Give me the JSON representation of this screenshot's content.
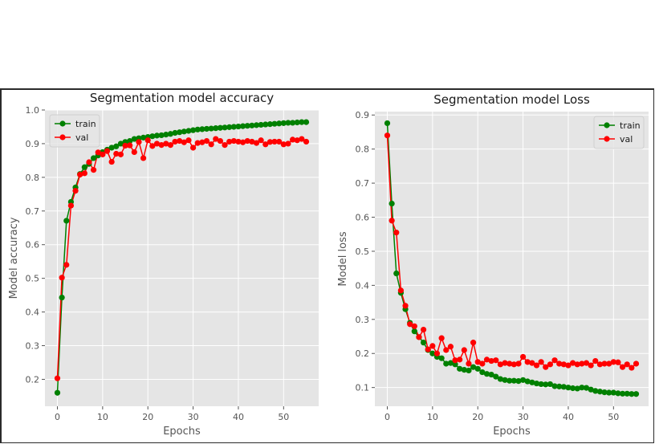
{
  "chart_data": [
    {
      "type": "line",
      "title": "Segmentation model accuracy",
      "xlabel": "Epochs",
      "ylabel": "Model accuracy",
      "xlim": [
        -2.75,
        57.75
      ],
      "ylim": [
        0.12,
        1.0
      ],
      "xticks": [
        0,
        10,
        20,
        30,
        40,
        50
      ],
      "yticks": [
        0.2,
        0.3,
        0.4,
        0.5,
        0.6,
        0.7,
        0.8,
        0.9,
        1.0
      ],
      "xtick_labels": [
        "0",
        "10",
        "20",
        "30",
        "40",
        "50"
      ],
      "ytick_labels": [
        "0.2",
        "0.3",
        "0.4",
        "0.5",
        "0.6",
        "0.7",
        "0.8",
        "0.9",
        "1.0"
      ],
      "grid": true,
      "legend": "upper left",
      "series": [
        {
          "name": "train",
          "color": "#008000",
          "values": [
            0.16,
            0.443,
            0.671,
            0.727,
            0.77,
            0.81,
            0.83,
            0.84,
            0.857,
            0.865,
            0.875,
            0.882,
            0.888,
            0.892,
            0.9,
            0.905,
            0.908,
            0.914,
            0.916,
            0.918,
            0.92,
            0.922,
            0.924,
            0.925,
            0.927,
            0.929,
            0.932,
            0.934,
            0.936,
            0.938,
            0.94,
            0.942,
            0.943,
            0.944,
            0.945,
            0.946,
            0.947,
            0.948,
            0.949,
            0.95,
            0.951,
            0.952,
            0.953,
            0.954,
            0.955,
            0.956,
            0.957,
            0.958,
            0.959,
            0.96,
            0.961,
            0.962,
            0.962,
            0.963,
            0.964,
            0.964
          ]
        },
        {
          "name": "val",
          "color": "#ff0000",
          "values": [
            0.203,
            0.502,
            0.54,
            0.716,
            0.76,
            0.808,
            0.812,
            0.845,
            0.822,
            0.874,
            0.868,
            0.878,
            0.846,
            0.87,
            0.868,
            0.894,
            0.895,
            0.875,
            0.905,
            0.857,
            0.91,
            0.893,
            0.9,
            0.896,
            0.9,
            0.896,
            0.906,
            0.908,
            0.904,
            0.91,
            0.888,
            0.902,
            0.904,
            0.908,
            0.898,
            0.914,
            0.908,
            0.896,
            0.906,
            0.908,
            0.906,
            0.904,
            0.908,
            0.906,
            0.902,
            0.91,
            0.898,
            0.905,
            0.906,
            0.906,
            0.898,
            0.9,
            0.912,
            0.91,
            0.914,
            0.906
          ]
        }
      ]
    },
    {
      "type": "line",
      "title": "Segmentation model Loss",
      "xlabel": "Epochs",
      "ylabel": "Model loss",
      "xlim": [
        -2.75,
        57.75
      ],
      "ylim": [
        0.045,
        0.91
      ],
      "xticks": [
        0,
        10,
        20,
        30,
        40,
        50
      ],
      "yticks": [
        0.1,
        0.2,
        0.3,
        0.4,
        0.5,
        0.6,
        0.7,
        0.8,
        0.9
      ],
      "xtick_labels": [
        "0",
        "10",
        "20",
        "30",
        "40",
        "50"
      ],
      "ytick_labels": [
        "0.1",
        "0.2",
        "0.3",
        "0.4",
        "0.5",
        "0.6",
        "0.7",
        "0.8",
        "0.9"
      ],
      "grid": true,
      "legend": "upper right",
      "series": [
        {
          "name": "train",
          "color": "#008000",
          "values": [
            0.876,
            0.64,
            0.435,
            0.378,
            0.33,
            0.29,
            0.265,
            0.248,
            0.232,
            0.21,
            0.2,
            0.19,
            0.186,
            0.17,
            0.172,
            0.168,
            0.155,
            0.152,
            0.15,
            0.16,
            0.155,
            0.145,
            0.14,
            0.138,
            0.132,
            0.125,
            0.122,
            0.12,
            0.12,
            0.119,
            0.122,
            0.118,
            0.115,
            0.112,
            0.11,
            0.109,
            0.11,
            0.104,
            0.103,
            0.102,
            0.1,
            0.098,
            0.097,
            0.1,
            0.099,
            0.094,
            0.09,
            0.088,
            0.086,
            0.085,
            0.085,
            0.083,
            0.082,
            0.082,
            0.081,
            0.081
          ]
        },
        {
          "name": "val",
          "color": "#ff0000",
          "values": [
            0.84,
            0.59,
            0.555,
            0.385,
            0.34,
            0.286,
            0.28,
            0.248,
            0.27,
            0.212,
            0.222,
            0.2,
            0.245,
            0.21,
            0.22,
            0.18,
            0.182,
            0.21,
            0.17,
            0.232,
            0.175,
            0.17,
            0.182,
            0.178,
            0.18,
            0.168,
            0.172,
            0.17,
            0.168,
            0.17,
            0.19,
            0.175,
            0.172,
            0.165,
            0.175,
            0.16,
            0.168,
            0.18,
            0.17,
            0.168,
            0.165,
            0.172,
            0.168,
            0.17,
            0.172,
            0.165,
            0.178,
            0.168,
            0.17,
            0.17,
            0.175,
            0.174,
            0.16,
            0.168,
            0.158,
            0.17
          ]
        }
      ]
    }
  ]
}
